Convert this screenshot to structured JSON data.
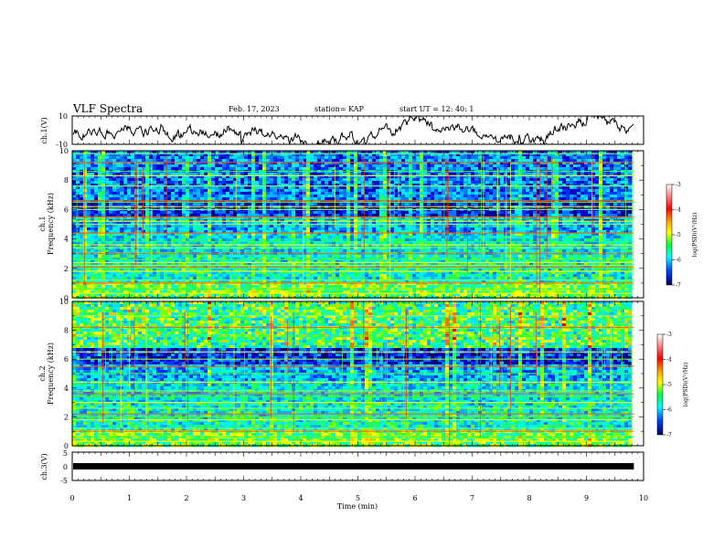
{
  "header": {
    "title": "VLF Spectra",
    "date": "Feb. 17, 2023",
    "station": "station= KAP",
    "start": "start UT =  12: 40: 1"
  },
  "chart_data": [
    {
      "type": "line",
      "panel": "ch1-waveform",
      "ylabel": "ch.1(V)",
      "ylim": [
        -10,
        10
      ],
      "yticks": [
        "10",
        "-10"
      ],
      "xlim": [
        0,
        10
      ],
      "note_series_color": "#000000"
    },
    {
      "type": "heatmap",
      "panel": "ch1-spectrogram",
      "ylabel_top": "ch.1",
      "ylabel": "Frequency (kHz)",
      "ylim": [
        0,
        10
      ],
      "yticks": [
        "0",
        "2",
        "4",
        "6",
        "8",
        "10"
      ],
      "xlim": [
        0,
        9.83
      ],
      "colorbar": {
        "label": "log(PSD)(V²/Hz)",
        "range": [
          -7,
          -3
        ],
        "ticks": [
          "-3",
          "-4",
          "-5",
          "-6",
          "-7"
        ]
      },
      "bands_khz": [
        0.3,
        0.6,
        1.0,
        1.2,
        1.8,
        2.0,
        2.1,
        2.2,
        2.4,
        2.6,
        3.0,
        3.4,
        3.6,
        3.8,
        4.4,
        5.0,
        5.2,
        5.4,
        5.5,
        6.0,
        6.2,
        6.5,
        6.6,
        7.6,
        8.3,
        8.6,
        9.2,
        9.8
      ]
    },
    {
      "type": "heatmap",
      "panel": "ch2-spectrogram",
      "ylabel_top": "ch.2",
      "ylabel": "Frequency (kHz)",
      "ylim": [
        0,
        10
      ],
      "yticks": [
        "0",
        "2",
        "4",
        "6",
        "8",
        "10"
      ],
      "xlim": [
        0,
        9.83
      ],
      "colorbar": {
        "label": "log(PSD)(V²/Hz)",
        "range": [
          -7,
          -3
        ],
        "ticks": [
          "-3",
          "-4",
          "-5",
          "-6",
          "-7"
        ]
      },
      "bands_khz": [
        0.3,
        0.6,
        1.0,
        1.2,
        1.8,
        2.0,
        2.2,
        2.6,
        3.0,
        3.4,
        3.6,
        3.8,
        4.4,
        5.0,
        5.5,
        6.0,
        6.5,
        7.6,
        8.2,
        9.0
      ]
    },
    {
      "type": "line",
      "panel": "ch3-waveform",
      "ylabel": "ch.3(V)",
      "ylim": [
        -5,
        5
      ],
      "yticks": [
        "5",
        "0",
        "-5"
      ],
      "xlim": [
        0,
        10
      ],
      "level_v": 0
    }
  ],
  "xaxis": {
    "label": "Time (min)",
    "ticks": [
      "0",
      "1",
      "2",
      "3",
      "4",
      "5",
      "6",
      "7",
      "8",
      "9",
      "10"
    ],
    "range": [
      0,
      10
    ]
  }
}
